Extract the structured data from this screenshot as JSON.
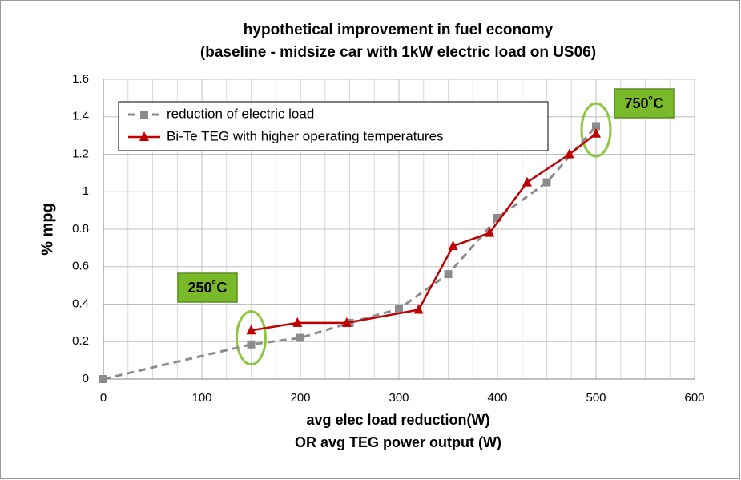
{
  "chart_data": {
    "type": "line",
    "title": [
      "hypothetical improvement in fuel economy",
      "(baseline - midsize car with 1kW electric load on US06)"
    ],
    "xlabel": [
      "avg elec load reduction(W)",
      "OR avg TEG power output (W)"
    ],
    "ylabel": "% mpg",
    "xlim": [
      0,
      600
    ],
    "xticks": [
      0,
      100,
      200,
      300,
      400,
      500,
      600
    ],
    "xminorticks": [
      25,
      50,
      75,
      125,
      150,
      175,
      225,
      250,
      275,
      325,
      350,
      375,
      425,
      450,
      475,
      525,
      550,
      575
    ],
    "ylim": [
      0,
      1.6
    ],
    "yticks": [
      0,
      0.2,
      0.4,
      0.6,
      0.8,
      1,
      1.2,
      1.4,
      1.6
    ],
    "grid": true,
    "legend": "upper left",
    "series": [
      {
        "name": "reduction of electric load",
        "color": "#8c8c8c",
        "dashed": true,
        "marker": "square",
        "x": [
          0,
          150,
          200,
          250,
          300,
          350,
          400,
          450,
          500
        ],
        "values": [
          0,
          0.185,
          0.22,
          0.3,
          0.375,
          0.56,
          0.86,
          1.05,
          1.35
        ]
      },
      {
        "name": "Bi-Te TEG with higher operating temperatures",
        "color": "#c00000",
        "dashed": false,
        "marker": "triangle",
        "x": [
          150,
          197,
          247,
          320,
          355,
          392,
          430,
          473,
          500
        ],
        "values": [
          0.26,
          0.3,
          0.3,
          0.37,
          0.71,
          0.78,
          1.05,
          1.2,
          1.31
        ]
      }
    ],
    "annotations": [
      {
        "text": "250˚C",
        "x": 150,
        "y": 0.22
      },
      {
        "text": "750˚C",
        "x": 500,
        "y": 1.33
      }
    ]
  }
}
